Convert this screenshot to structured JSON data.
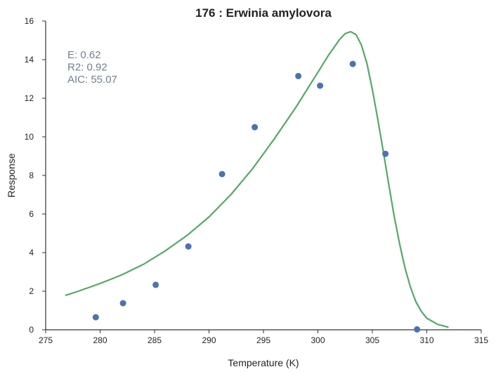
{
  "chart_data": {
    "type": "scatter",
    "title": "176 : Erwinia amylovora",
    "xlabel": "Temperature (K)",
    "ylabel": "Response",
    "xlim": [
      275,
      315
    ],
    "ylim": [
      0,
      16
    ],
    "xticks": [
      275,
      280,
      285,
      290,
      295,
      300,
      305,
      310,
      315
    ],
    "yticks": [
      0,
      2,
      4,
      6,
      8,
      10,
      12,
      14,
      16
    ],
    "grid": false,
    "colors": {
      "points": "#4c72b0",
      "fit": "#55a868"
    },
    "annotations": [
      "E:  0.62",
      "R2:  0.92",
      "AIC: 55.07"
    ],
    "series": [
      {
        "type": "scatter",
        "x": [
          279.6,
          282.1,
          285.1,
          288.1,
          291.2,
          294.2,
          298.2,
          300.2,
          303.2,
          306.2,
          309.1
        ],
        "y": [
          0.65,
          1.38,
          2.33,
          4.32,
          8.07,
          10.5,
          13.15,
          12.65,
          13.78,
          9.12,
          0.02
        ]
      },
      {
        "type": "line",
        "x": [
          276.8,
          278,
          280,
          282,
          284,
          286,
          288,
          290,
          292,
          294,
          296,
          298,
          299,
          300,
          301,
          302,
          302.5,
          303,
          303.5,
          304,
          304.5,
          305,
          305.5,
          306,
          306.5,
          307,
          307.5,
          308,
          308.5,
          309,
          309.5,
          310,
          311,
          312
        ],
        "y": [
          1.78,
          2.0,
          2.4,
          2.85,
          3.4,
          4.1,
          4.9,
          5.85,
          7.0,
          8.35,
          9.9,
          11.55,
          12.45,
          13.35,
          14.25,
          15.05,
          15.35,
          15.45,
          15.3,
          14.75,
          13.8,
          12.45,
          10.9,
          9.25,
          7.55,
          5.9,
          4.45,
          3.2,
          2.2,
          1.45,
          0.95,
          0.6,
          0.28,
          0.13
        ]
      }
    ]
  }
}
